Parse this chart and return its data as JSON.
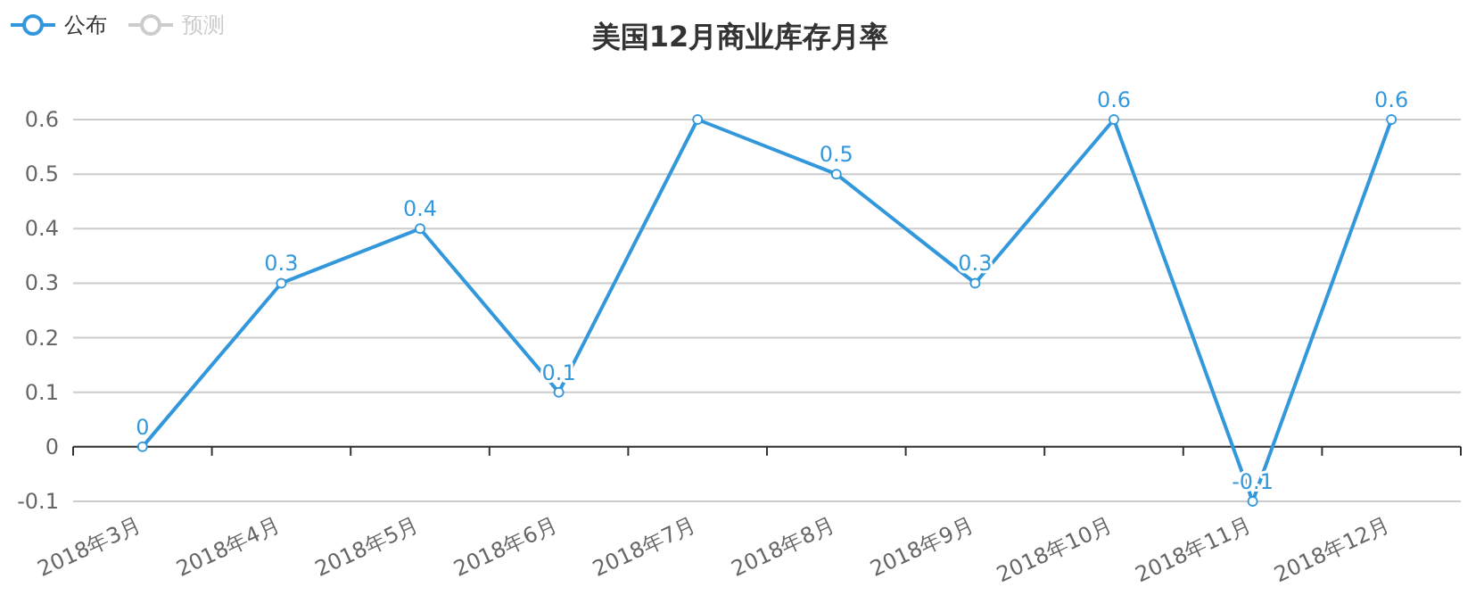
{
  "chart_data": {
    "type": "line",
    "title": "美国12月商业库存月率",
    "categories": [
      "2018年3月",
      "2018年4月",
      "2018年5月",
      "2018年6月",
      "2018年7月",
      "2018年8月",
      "2018年9月",
      "2018年10月",
      "2018年11月",
      "2018年12月"
    ],
    "series": [
      {
        "name": "公布",
        "color": "#3398db",
        "values": [
          0,
          0.3,
          0.4,
          0.1,
          0.6,
          0.5,
          0.3,
          0.6,
          -0.1,
          0.6
        ],
        "value_labels": [
          "0",
          "0.3",
          "0.4",
          "0.1",
          null,
          "0.5",
          "0.3",
          "0.6",
          "-0.1",
          "0.6"
        ]
      },
      {
        "name": "预测",
        "color": "#cccccc",
        "values": [
          null,
          null,
          null,
          null,
          null,
          null,
          null,
          null,
          null,
          null
        ]
      }
    ],
    "ylim": [
      -0.1,
      0.6
    ],
    "yticks": [
      -0.1,
      0,
      0.1,
      0.2,
      0.3,
      0.4,
      0.5,
      0.6
    ],
    "grid": "y",
    "legend": "top left",
    "marker": "circle",
    "line_style": "solid"
  }
}
